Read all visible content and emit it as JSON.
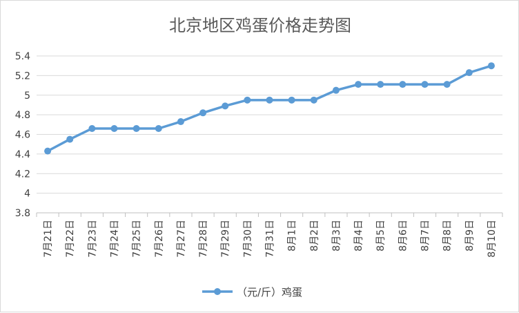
{
  "chart_data": {
    "type": "line",
    "title": "北京地区鸡蛋价格走势图",
    "categories": [
      "7月21日",
      "7月22日",
      "7月23日",
      "7月24日",
      "7月25日",
      "7月26日",
      "7月27日",
      "7月28日",
      "7月29日",
      "7月30日",
      "7月31日",
      "8月1日",
      "8月2日",
      "8月3日",
      "8月4日",
      "8月5日",
      "8月6日",
      "8月7日",
      "8月8日",
      "8月9日",
      "8月10日"
    ],
    "series": [
      {
        "name": "（元/斤）鸡蛋",
        "values": [
          4.43,
          4.55,
          4.66,
          4.66,
          4.66,
          4.66,
          4.73,
          4.82,
          4.89,
          4.95,
          4.95,
          4.95,
          4.95,
          5.05,
          5.11,
          5.11,
          5.11,
          5.11,
          5.11,
          5.23,
          5.3
        ],
        "color": "#5b9bd5"
      }
    ],
    "ylim": [
      3.8,
      5.4
    ],
    "yticks": [
      "3.8",
      "4",
      "4.2",
      "4.4",
      "4.6",
      "4.8",
      "5",
      "5.2",
      "5.4"
    ],
    "grid": true,
    "legend": "bottom",
    "colors": {
      "grid": "#d9d9d9",
      "axis": "#bfbfbf",
      "text": "#404040",
      "title": "#595959"
    }
  }
}
